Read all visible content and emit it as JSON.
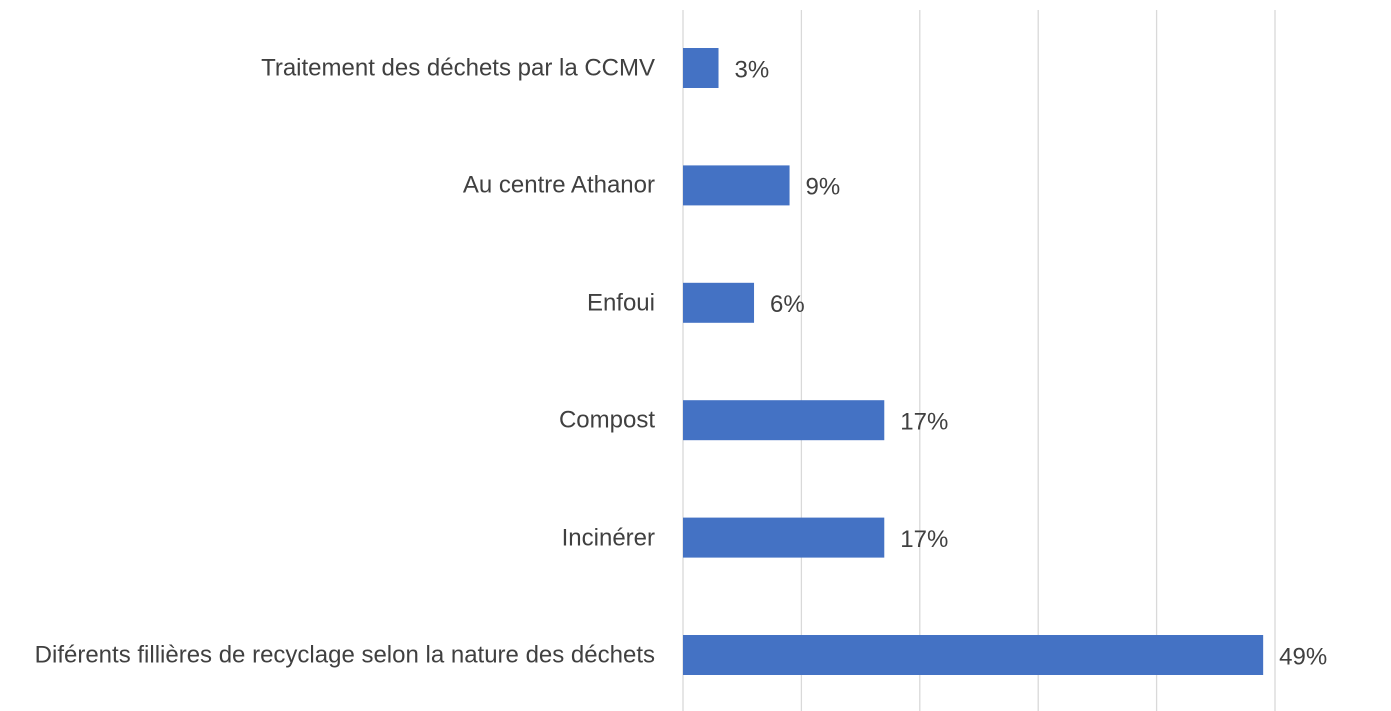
{
  "chart_data": {
    "type": "bar",
    "orientation": "horizontal",
    "categories": [
      "Traitement des déchets par la CCMV",
      "Au centre Athanor",
      "Enfoui",
      "Compost",
      "Incinérer",
      "Diférents fillières de recyclage selon la nature des déchets"
    ],
    "values": [
      3,
      9,
      6,
      17,
      17,
      49
    ],
    "value_labels": [
      "3%",
      "9%",
      "6%",
      "17%",
      "17%",
      "49%"
    ],
    "color": "#4472c4",
    "xlim": [
      0,
      50
    ],
    "xticks": [
      0,
      10,
      20,
      30,
      40,
      50
    ],
    "grid": true
  }
}
